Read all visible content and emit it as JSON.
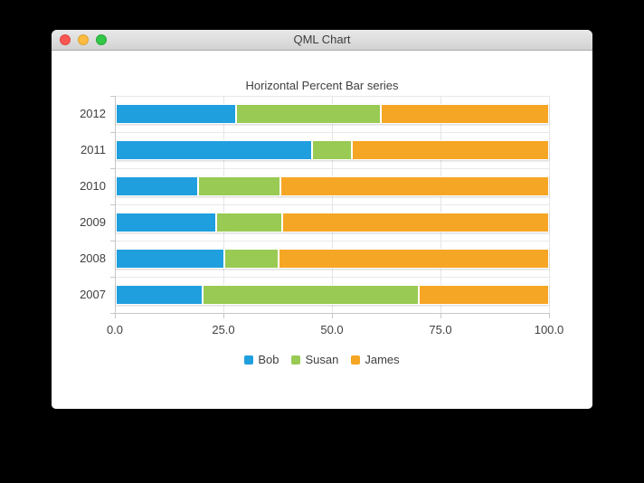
{
  "window": {
    "title": "QML Chart",
    "traffic_lights": [
      {
        "name": "close",
        "color": "#fc5753"
      },
      {
        "name": "minimize",
        "color": "#fdbc40"
      },
      {
        "name": "zoom",
        "color": "#33c748"
      }
    ]
  },
  "chart_data": {
    "type": "bar",
    "orientation": "horizontal",
    "stacking": "percent",
    "title": "Horizontal Percent Bar series",
    "categories": [
      "2012",
      "2011",
      "2010",
      "2009",
      "2008",
      "2007"
    ],
    "series": [
      {
        "name": "Bob",
        "color": "#209fdf",
        "percent_values": [
          27.8,
          45.4,
          19.0,
          23.1,
          25.0,
          20.0
        ]
      },
      {
        "name": "Susan",
        "color": "#99ca53",
        "percent_values": [
          33.3,
          9.1,
          19.1,
          15.4,
          12.5,
          50.0
        ]
      },
      {
        "name": "James",
        "color": "#f6a625",
        "percent_values": [
          38.9,
          45.5,
          61.9,
          61.5,
          62.5,
          30.0
        ]
      }
    ],
    "x_ticks": [
      {
        "label": "0.0",
        "value": 0
      },
      {
        "label": "25.0",
        "value": 25
      },
      {
        "label": "50.0",
        "value": 50
      },
      {
        "label": "75.0",
        "value": 75
      },
      {
        "label": "100.0",
        "value": 100
      }
    ],
    "xlim": [
      0,
      100
    ],
    "grid": true,
    "legend": {
      "position": "bottom",
      "entries": [
        "Bob",
        "Susan",
        "James"
      ]
    },
    "colors": {
      "text": "#404044",
      "axis_line": "#c7c7c9",
      "gridline": "#e6e6e6",
      "background": "#ffffff"
    },
    "layout_hints": {
      "rows_listed": "top-to-bottom",
      "category_axis": "y",
      "value_axis": "x"
    }
  }
}
